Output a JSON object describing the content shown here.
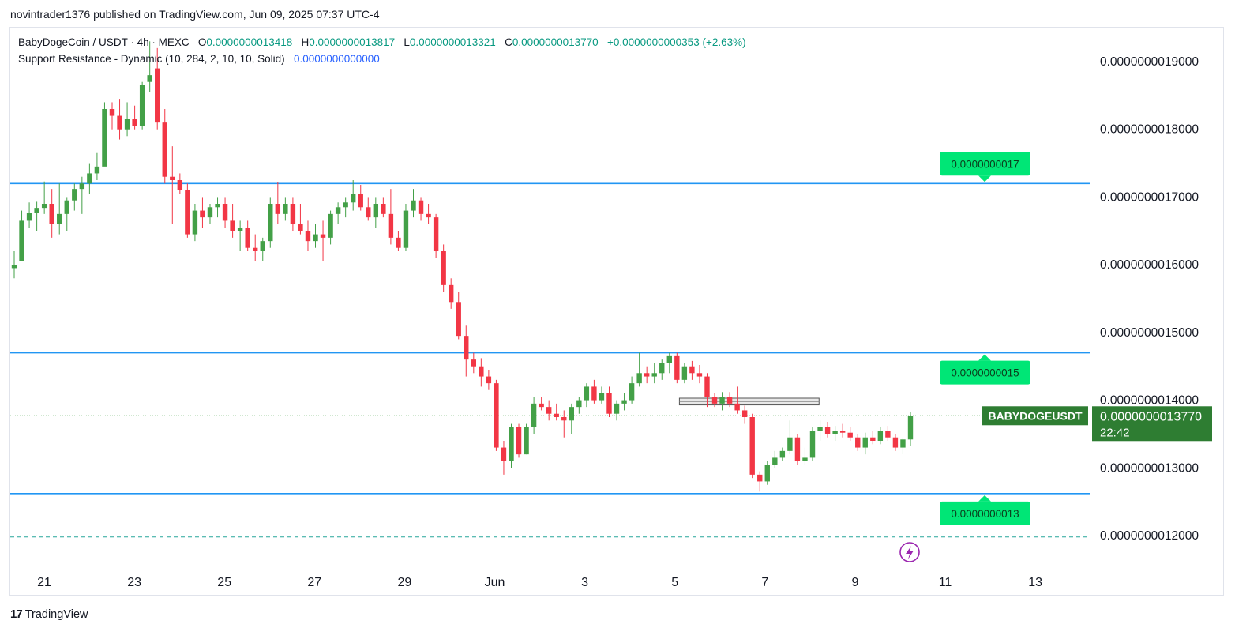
{
  "publisher_line": "novintrader1376 published on TradingView.com, Jun 09, 2025 07:37 UTC-4",
  "legend": {
    "symbol": "BabyDogeCoin / USDT · 4h · MEXC",
    "o_label": "O",
    "o_value": "0.0000000013418",
    "h_label": "H",
    "h_value": "0.0000000013817",
    "l_label": "L",
    "l_value": "0.0000000013321",
    "c_label": "C",
    "c_value": "0.0000000013770",
    "change": "+0.0000000000353 (+2.63%)",
    "indicator": "Support Resistance - Dynamic (10, 284, 2, 10, 10, Solid)",
    "indicator_value": "0.0000000000000"
  },
  "footer": {
    "brand": "TradingView",
    "logo_mark": "17"
  },
  "colors": {
    "up": "#43a047",
    "down": "#f23645",
    "level_line": "#2196f3",
    "label_green": "#00e676",
    "price_tag": "#2e7d32",
    "dashed": "#26a69a",
    "zone": "#c8c8c8",
    "grid_text": "#131722",
    "lightning": "#9c27b0"
  },
  "chart_data": {
    "type": "candlestick",
    "timeframe": "4h",
    "y_ticks": [
      {
        "value": 1.9e-09,
        "label": "0.0000000019000"
      },
      {
        "value": 1.8e-09,
        "label": "0.0000000018000"
      },
      {
        "value": 1.7e-09,
        "label": "0.0000000017000"
      },
      {
        "value": 1.6e-09,
        "label": "0.0000000016000"
      },
      {
        "value": 1.5e-09,
        "label": "0.0000000015000"
      },
      {
        "value": 1.4e-09,
        "label": "0.0000000014000"
      },
      {
        "value": 1.3e-09,
        "label": "0.0000000013000"
      },
      {
        "value": 1.2e-09,
        "label": "0.0000000012000"
      }
    ],
    "ylim": [
      1.115e-09,
      1.968e-09
    ],
    "x_ticks": [
      {
        "label": "21",
        "day": 21
      },
      {
        "label": "23",
        "day": 23
      },
      {
        "label": "25",
        "day": 25
      },
      {
        "label": "27",
        "day": 27
      },
      {
        "label": "29",
        "day": 29
      },
      {
        "label": "Jun",
        "day": 31
      },
      {
        "label": "3",
        "day": 33
      },
      {
        "label": "5",
        "day": 35
      },
      {
        "label": "7",
        "day": 37
      },
      {
        "label": "9",
        "day": 39
      },
      {
        "label": "11",
        "day": 41
      },
      {
        "label": "13",
        "day": 43
      }
    ],
    "x_axis_note": "x in days counted from May 1 (Jun 1 = 32)",
    "candles": [
      {
        "o": 1.595e-09,
        "h": 1.62e-09,
        "l": 1.58e-09,
        "c": 1.6e-09
      },
      {
        "o": 1.605e-09,
        "h": 1.68e-09,
        "l": 1.61e-09,
        "c": 1.665e-09
      },
      {
        "o": 1.665e-09,
        "h": 1.692e-09,
        "l": 1.655e-09,
        "c": 1.677e-09
      },
      {
        "o": 1.677e-09,
        "h": 1.693e-09,
        "l": 1.65e-09,
        "c": 1.684e-09
      },
      {
        "o": 1.684e-09,
        "h": 1.723e-09,
        "l": 1.675e-09,
        "c": 1.69e-09
      },
      {
        "o": 1.69e-09,
        "h": 1.712e-09,
        "l": 1.64e-09,
        "c": 1.66e-09
      },
      {
        "o": 1.66e-09,
        "h": 1.72e-09,
        "l": 1.645e-09,
        "c": 1.675e-09
      },
      {
        "o": 1.675e-09,
        "h": 1.7e-09,
        "l": 1.65e-09,
        "c": 1.695e-09
      },
      {
        "o": 1.695e-09,
        "h": 1.72e-09,
        "l": 1.68e-09,
        "c": 1.712e-09
      },
      {
        "o": 1.712e-09,
        "h": 1.73e-09,
        "l": 1.675e-09,
        "c": 1.72e-09
      },
      {
        "o": 1.72e-09,
        "h": 1.75e-09,
        "l": 1.705e-09,
        "c": 1.735e-09
      },
      {
        "o": 1.735e-09,
        "h": 1.765e-09,
        "l": 1.725e-09,
        "c": 1.745e-09
      },
      {
        "o": 1.745e-09,
        "h": 1.84e-09,
        "l": 1.75e-09,
        "c": 1.83e-09
      },
      {
        "o": 1.83e-09,
        "h": 1.84e-09,
        "l": 1.8e-09,
        "c": 1.82e-09
      },
      {
        "o": 1.82e-09,
        "h": 1.845e-09,
        "l": 1.785e-09,
        "c": 1.8e-09
      },
      {
        "o": 1.8e-09,
        "h": 1.84e-09,
        "l": 1.79e-09,
        "c": 1.815e-09
      },
      {
        "o": 1.815e-09,
        "h": 1.835e-09,
        "l": 1.8e-09,
        "c": 1.805e-09
      },
      {
        "o": 1.805e-09,
        "h": 1.87e-09,
        "l": 1.8e-09,
        "c": 1.865e-09
      },
      {
        "o": 1.87e-09,
        "h": 1.93e-09,
        "l": 1.855e-09,
        "c": 1.88e-09
      },
      {
        "o": 1.89e-09,
        "h": 1.92e-09,
        "l": 1.8e-09,
        "c": 1.81e-09
      },
      {
        "o": 1.81e-09,
        "h": 1.83e-09,
        "l": 1.72e-09,
        "c": 1.73e-09
      },
      {
        "o": 1.73e-09,
        "h": 1.775e-09,
        "l": 1.66e-09,
        "c": 1.725e-09
      },
      {
        "o": 1.725e-09,
        "h": 1.735e-09,
        "l": 1.705e-09,
        "c": 1.71e-09
      },
      {
        "o": 1.71e-09,
        "h": 1.72e-09,
        "l": 1.64e-09,
        "c": 1.645e-09
      },
      {
        "o": 1.645e-09,
        "h": 1.69e-09,
        "l": 1.635e-09,
        "c": 1.68e-09
      },
      {
        "o": 1.68e-09,
        "h": 1.7e-09,
        "l": 1.655e-09,
        "c": 1.67e-09
      },
      {
        "o": 1.67e-09,
        "h": 1.69e-09,
        "l": 1.66e-09,
        "c": 1.685e-09
      },
      {
        "o": 1.685e-09,
        "h": 1.7e-09,
        "l": 1.67e-09,
        "c": 1.69e-09
      },
      {
        "o": 1.69e-09,
        "h": 1.7e-09,
        "l": 1.655e-09,
        "c": 1.665e-09
      },
      {
        "o": 1.665e-09,
        "h": 1.69e-09,
        "l": 1.64e-09,
        "c": 1.65e-09
      },
      {
        "o": 1.65e-09,
        "h": 1.665e-09,
        "l": 1.62e-09,
        "c": 1.655e-09
      },
      {
        "o": 1.655e-09,
        "h": 1.665e-09,
        "l": 1.62e-09,
        "c": 1.625e-09
      },
      {
        "o": 1.625e-09,
        "h": 1.645e-09,
        "l": 1.605e-09,
        "c": 1.62e-09
      },
      {
        "o": 1.62e-09,
        "h": 1.64e-09,
        "l": 1.605e-09,
        "c": 1.635e-09
      },
      {
        "o": 1.635e-09,
        "h": 1.7e-09,
        "l": 1.625e-09,
        "c": 1.69e-09
      },
      {
        "o": 1.69e-09,
        "h": 1.722e-09,
        "l": 1.66e-09,
        "c": 1.675e-09
      },
      {
        "o": 1.675e-09,
        "h": 1.7e-09,
        "l": 1.665e-09,
        "c": 1.69e-09
      },
      {
        "o": 1.69e-09,
        "h": 1.7e-09,
        "l": 1.65e-09,
        "c": 1.66e-09
      },
      {
        "o": 1.66e-09,
        "h": 1.69e-09,
        "l": 1.645e-09,
        "c": 1.65e-09
      },
      {
        "o": 1.65e-09,
        "h": 1.665e-09,
        "l": 1.62e-09,
        "c": 1.635e-09
      },
      {
        "o": 1.635e-09,
        "h": 1.66e-09,
        "l": 1.625e-09,
        "c": 1.645e-09
      },
      {
        "o": 1.645e-09,
        "h": 1.665e-09,
        "l": 1.605e-09,
        "c": 1.64e-09
      },
      {
        "o": 1.64e-09,
        "h": 1.68e-09,
        "l": 1.63e-09,
        "c": 1.675e-09
      },
      {
        "o": 1.675e-09,
        "h": 1.692e-09,
        "l": 1.66e-09,
        "c": 1.685e-09
      },
      {
        "o": 1.685e-09,
        "h": 1.7e-09,
        "l": 1.67e-09,
        "c": 1.692e-09
      },
      {
        "o": 1.692e-09,
        "h": 1.725e-09,
        "l": 1.68e-09,
        "c": 1.705e-09
      },
      {
        "o": 1.705e-09,
        "h": 1.718e-09,
        "l": 1.68e-09,
        "c": 1.685e-09
      },
      {
        "o": 1.685e-09,
        "h": 1.7e-09,
        "l": 1.665e-09,
        "c": 1.67e-09
      },
      {
        "o": 1.67e-09,
        "h": 1.7e-09,
        "l": 1.655e-09,
        "c": 1.69e-09
      },
      {
        "o": 1.69e-09,
        "h": 1.7e-09,
        "l": 1.67e-09,
        "c": 1.675e-09
      },
      {
        "o": 1.675e-09,
        "h": 1.712e-09,
        "l": 1.63e-09,
        "c": 1.64e-09
      },
      {
        "o": 1.64e-09,
        "h": 1.65e-09,
        "l": 1.62e-09,
        "c": 1.625e-09
      },
      {
        "o": 1.625e-09,
        "h": 1.69e-09,
        "l": 1.62e-09,
        "c": 1.68e-09
      },
      {
        "o": 1.68e-09,
        "h": 1.712e-09,
        "l": 1.67e-09,
        "c": 1.695e-09
      },
      {
        "o": 1.695e-09,
        "h": 1.7e-09,
        "l": 1.665e-09,
        "c": 1.675e-09
      },
      {
        "o": 1.675e-09,
        "h": 1.69e-09,
        "l": 1.66e-09,
        "c": 1.67e-09
      },
      {
        "o": 1.67e-09,
        "h": 1.675e-09,
        "l": 1.61e-09,
        "c": 1.62e-09
      },
      {
        "o": 1.62e-09,
        "h": 1.63e-09,
        "l": 1.56e-09,
        "c": 1.57e-09
      },
      {
        "o": 1.57e-09,
        "h": 1.58e-09,
        "l": 1.535e-09,
        "c": 1.545e-09
      },
      {
        "o": 1.545e-09,
        "h": 1.56e-09,
        "l": 1.49e-09,
        "c": 1.495e-09
      },
      {
        "o": 1.495e-09,
        "h": 1.51e-09,
        "l": 1.435e-09,
        "c": 1.46e-09
      },
      {
        "o": 1.46e-09,
        "h": 1.47e-09,
        "l": 1.44e-09,
        "c": 1.45e-09
      },
      {
        "o": 1.45e-09,
        "h": 1.462e-09,
        "l": 1.42e-09,
        "c": 1.435e-09
      },
      {
        "o": 1.435e-09,
        "h": 1.445e-09,
        "l": 1.415e-09,
        "c": 1.425e-09
      },
      {
        "o": 1.425e-09,
        "h": 1.43e-09,
        "l": 1.325e-09,
        "c": 1.33e-09
      },
      {
        "o": 1.33e-09,
        "h": 1.34e-09,
        "l": 1.29e-09,
        "c": 1.31e-09
      },
      {
        "o": 1.31e-09,
        "h": 1.365e-09,
        "l": 1.3e-09,
        "c": 1.36e-09
      },
      {
        "o": 1.36e-09,
        "h": 1.365e-09,
        "l": 1.315e-09,
        "c": 1.32e-09
      },
      {
        "o": 1.32e-09,
        "h": 1.365e-09,
        "l": 1.32e-09,
        "c": 1.36e-09
      },
      {
        "o": 1.36e-09,
        "h": 1.405e-09,
        "l": 1.35e-09,
        "c": 1.395e-09
      },
      {
        "o": 1.395e-09,
        "h": 1.405e-09,
        "l": 1.385e-09,
        "c": 1.39e-09
      },
      {
        "o": 1.39e-09,
        "h": 1.4e-09,
        "l": 1.37e-09,
        "c": 1.38e-09
      },
      {
        "o": 1.38e-09,
        "h": 1.395e-09,
        "l": 1.37e-09,
        "c": 1.375e-09
      },
      {
        "o": 1.375e-09,
        "h": 1.385e-09,
        "l": 1.345e-09,
        "c": 1.37e-09
      },
      {
        "o": 1.37e-09,
        "h": 1.395e-09,
        "l": 1.35e-09,
        "c": 1.39e-09
      },
      {
        "o": 1.39e-09,
        "h": 1.405e-09,
        "l": 1.38e-09,
        "c": 1.4e-09
      },
      {
        "o": 1.4e-09,
        "h": 1.425e-09,
        "l": 1.39e-09,
        "c": 1.42e-09
      },
      {
        "o": 1.42e-09,
        "h": 1.43e-09,
        "l": 1.395e-09,
        "c": 1.4e-09
      },
      {
        "o": 1.4e-09,
        "h": 1.42e-09,
        "l": 1.395e-09,
        "c": 1.41e-09
      },
      {
        "o": 1.41e-09,
        "h": 1.42e-09,
        "l": 1.375e-09,
        "c": 1.38e-09
      },
      {
        "o": 1.38e-09,
        "h": 1.4e-09,
        "l": 1.37e-09,
        "c": 1.395e-09
      },
      {
        "o": 1.395e-09,
        "h": 1.41e-09,
        "l": 1.385e-09,
        "c": 1.4e-09
      },
      {
        "o": 1.4e-09,
        "h": 1.435e-09,
        "l": 1.395e-09,
        "c": 1.425e-09
      },
      {
        "o": 1.425e-09,
        "h": 1.47e-09,
        "l": 1.42e-09,
        "c": 1.44e-09
      },
      {
        "o": 1.44e-09,
        "h": 1.45e-09,
        "l": 1.425e-09,
        "c": 1.435e-09
      },
      {
        "o": 1.435e-09,
        "h": 1.455e-09,
        "l": 1.425e-09,
        "c": 1.44e-09
      },
      {
        "o": 1.44e-09,
        "h": 1.46e-09,
        "l": 1.43e-09,
        "c": 1.455e-09
      },
      {
        "o": 1.455e-09,
        "h": 1.47e-09,
        "l": 1.44e-09,
        "c": 1.465e-09
      },
      {
        "o": 1.465e-09,
        "h": 1.47e-09,
        "l": 1.425e-09,
        "c": 1.43e-09
      },
      {
        "o": 1.43e-09,
        "h": 1.455e-09,
        "l": 1.425e-09,
        "c": 1.45e-09
      },
      {
        "o": 1.45e-09,
        "h": 1.458e-09,
        "l": 1.43e-09,
        "c": 1.44e-09
      },
      {
        "o": 1.44e-09,
        "h": 1.452e-09,
        "l": 1.425e-09,
        "c": 1.435e-09
      },
      {
        "o": 1.435e-09,
        "h": 1.44e-09,
        "l": 1.39e-09,
        "c": 1.405e-09
      },
      {
        "o": 1.405e-09,
        "h": 1.41e-09,
        "l": 1.39e-09,
        "c": 1.395e-09
      },
      {
        "o": 1.395e-09,
        "h": 1.412e-09,
        "l": 1.385e-09,
        "c": 1.405e-09
      },
      {
        "o": 1.405e-09,
        "h": 1.412e-09,
        "l": 1.39e-09,
        "c": 1.395e-09
      },
      {
        "o": 1.395e-09,
        "h": 1.42e-09,
        "l": 1.38e-09,
        "c": 1.385e-09
      },
      {
        "o": 1.385e-09,
        "h": 1.392e-09,
        "l": 1.365e-09,
        "c": 1.375e-09
      },
      {
        "o": 1.375e-09,
        "h": 1.38e-09,
        "l": 1.285e-09,
        "c": 1.29e-09
      },
      {
        "o": 1.29e-09,
        "h": 1.295e-09,
        "l": 1.265e-09,
        "c": 1.28e-09
      },
      {
        "o": 1.28e-09,
        "h": 1.31e-09,
        "l": 1.275e-09,
        "c": 1.305e-09
      },
      {
        "o": 1.305e-09,
        "h": 1.325e-09,
        "l": 1.3e-09,
        "c": 1.315e-09
      },
      {
        "o": 1.315e-09,
        "h": 1.33e-09,
        "l": 1.31e-09,
        "c": 1.325e-09
      },
      {
        "o": 1.325e-09,
        "h": 1.37e-09,
        "l": 1.32e-09,
        "c": 1.345e-09
      },
      {
        "o": 1.345e-09,
        "h": 1.35e-09,
        "l": 1.305e-09,
        "c": 1.31e-09
      },
      {
        "o": 1.31e-09,
        "h": 1.33e-09,
        "l": 1.305e-09,
        "c": 1.315e-09
      },
      {
        "o": 1.315e-09,
        "h": 1.36e-09,
        "l": 1.31e-09,
        "c": 1.355e-09
      },
      {
        "o": 1.355e-09,
        "h": 1.37e-09,
        "l": 1.34e-09,
        "c": 1.36e-09
      },
      {
        "o": 1.36e-09,
        "h": 1.368e-09,
        "l": 1.345e-09,
        "c": 1.35e-09
      },
      {
        "o": 1.35e-09,
        "h": 1.362e-09,
        "l": 1.34e-09,
        "c": 1.355e-09
      },
      {
        "o": 1.355e-09,
        "h": 1.365e-09,
        "l": 1.345e-09,
        "c": 1.352e-09
      },
      {
        "o": 1.352e-09,
        "h": 1.36e-09,
        "l": 1.34e-09,
        "c": 1.345e-09
      },
      {
        "o": 1.345e-09,
        "h": 1.35e-09,
        "l": 1.325e-09,
        "c": 1.33e-09
      },
      {
        "o": 1.33e-09,
        "h": 1.352e-09,
        "l": 1.32e-09,
        "c": 1.345e-09
      },
      {
        "o": 1.345e-09,
        "h": 1.355e-09,
        "l": 1.335e-09,
        "c": 1.34e-09
      },
      {
        "o": 1.34e-09,
        "h": 1.36e-09,
        "l": 1.335e-09,
        "c": 1.355e-09
      },
      {
        "o": 1.355e-09,
        "h": 1.362e-09,
        "l": 1.34e-09,
        "c": 1.345e-09
      },
      {
        "o": 1.345e-09,
        "h": 1.35e-09,
        "l": 1.325e-09,
        "c": 1.33e-09
      },
      {
        "o": 1.33e-09,
        "h": 1.345e-09,
        "l": 1.32e-09,
        "c": 1.342e-09
      },
      {
        "o": 1.342e-09,
        "h": 1.382e-09,
        "l": 1.332e-09,
        "c": 1.377e-09
      }
    ],
    "levels": [
      {
        "value": 1.72e-09,
        "label": "0.0000000017",
        "marker": "down"
      },
      {
        "value": 1.47e-09,
        "label": "0.0000000015",
        "marker": "up"
      },
      {
        "value": 1.262e-09,
        "label": "0.0000000013",
        "marker": "up"
      }
    ],
    "dashed_level": 1.198e-09,
    "zone": {
      "from_day": 35.1,
      "to_day": 38.2,
      "top": 1.403e-09,
      "bottom": 1.393e-09
    },
    "last_price": {
      "value": 1.377e-09,
      "symbol": "BABYDOGEUSDT",
      "label": "0.0000000013770",
      "countdown": "22:42"
    }
  }
}
